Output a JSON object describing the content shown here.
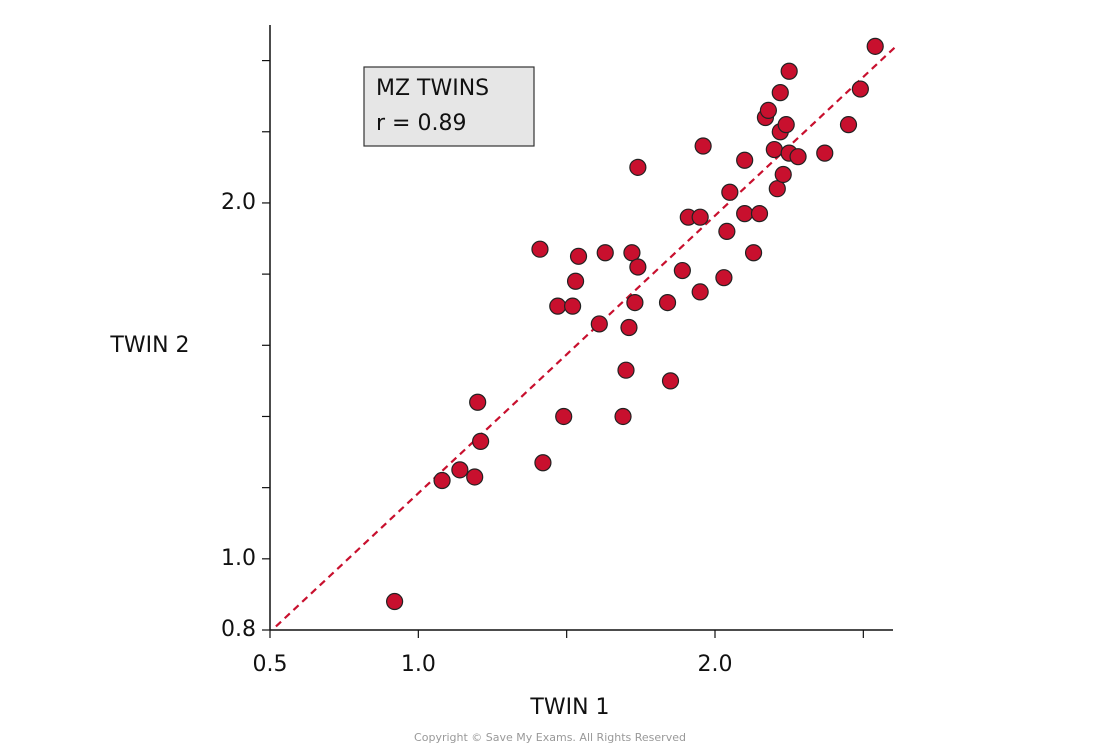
{
  "chart_data": {
    "type": "scatter",
    "xlabel": "TWIN 1",
    "ylabel": "TWIN 2",
    "annotation": [
      "MZ  TWINS",
      "r = 0.89"
    ],
    "copyright": "Copyright © Save My Exams. All Rights Reserved",
    "xlim": [
      0.5,
      2.6
    ],
    "ylim": [
      0.8,
      2.5
    ],
    "xticks": [
      {
        "value": 0.5,
        "label": "0.5"
      },
      {
        "value": 1,
        "label": "1.0"
      },
      {
        "value": 2,
        "label": "2.0"
      }
    ],
    "xminor_ticks": [
      1.5,
      2.5
    ],
    "yticks": [
      {
        "value": 0.8,
        "label": "0.8"
      },
      {
        "value": 1,
        "label": "1.0"
      },
      {
        "value": 2,
        "label": "2.0"
      }
    ],
    "yminor_ticks": [
      1.2,
      1.4,
      1.6,
      1.8,
      2.2,
      2.4
    ],
    "fit_line": {
      "color": "#c8102e",
      "x": [
        0.52,
        2.61
      ],
      "y": [
        0.81,
        2.44
      ]
    },
    "series": [
      {
        "color": "#c8102e",
        "x": [
          0.92,
          1.08,
          1.14,
          1.19,
          1.2,
          1.21,
          1.41,
          1.42,
          1.47,
          1.49,
          1.52,
          1.53,
          1.54,
          1.61,
          1.63,
          1.69,
          1.7,
          1.71,
          1.72,
          1.73,
          1.74,
          1.74,
          1.84,
          1.85,
          1.89,
          1.91,
          1.95,
          1.95,
          1.96,
          2.03,
          2.04,
          2.05,
          2.1,
          2.1,
          2.13,
          2.15,
          2.17,
          2.18,
          2.2,
          2.21,
          2.22,
          2.22,
          2.23,
          2.24,
          2.25,
          2.25,
          2.28,
          2.37,
          2.45,
          2.49,
          2.54
        ],
        "values": [
          0.88,
          1.22,
          1.25,
          1.23,
          1.44,
          1.33,
          1.87,
          1.27,
          1.71,
          1.4,
          1.71,
          1.78,
          1.85,
          1.66,
          1.86,
          1.4,
          1.53,
          1.65,
          1.86,
          1.72,
          2.1,
          1.82,
          1.72,
          1.5,
          1.81,
          1.96,
          1.96,
          1.75,
          2.16,
          1.79,
          1.92,
          2.03,
          1.97,
          2.12,
          1.86,
          1.97,
          2.24,
          2.26,
          2.15,
          2.04,
          2.2,
          2.31,
          2.08,
          2.22,
          2.37,
          2.14,
          2.13,
          2.14,
          2.22,
          2.32,
          2.44
        ]
      }
    ]
  }
}
